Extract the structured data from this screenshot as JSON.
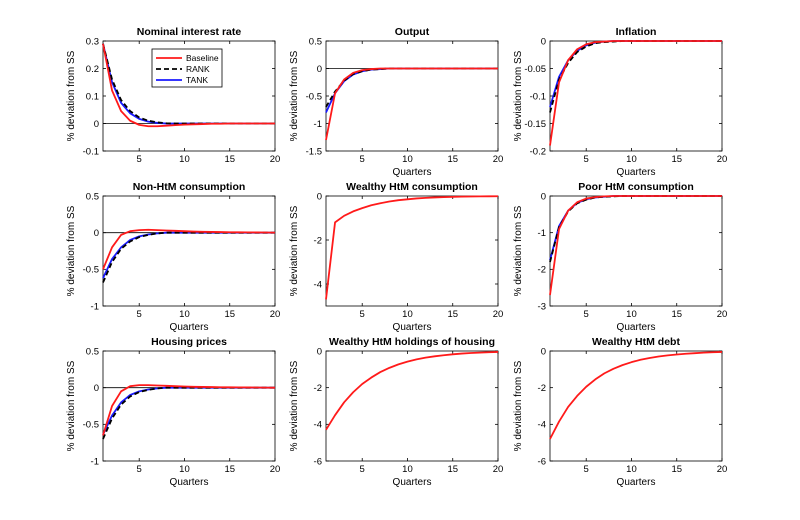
{
  "figure": {
    "colors": {
      "baseline": "#ff1a1a",
      "rank": "#000000",
      "tank": "#1a1aff",
      "zero_line": "#000000"
    },
    "legend": [
      "Baseline",
      "RANK",
      "TANK"
    ]
  },
  "chart_data": [
    {
      "type": "line",
      "title": "Nominal interest rate",
      "xlabel": "",
      "ylabel": "% deviation from SS",
      "xlim": [
        1,
        20
      ],
      "ylim": [
        -0.1,
        0.3
      ],
      "xticks": [
        5,
        10,
        15,
        20
      ],
      "xtick_labels": [
        "5",
        "10",
        "15",
        "20"
      ],
      "yticks": [
        -0.1,
        0,
        0.1,
        0.2,
        0.3
      ],
      "ytick_labels": [
        "-0.1",
        "0",
        "0.1",
        "0.2",
        "0.3"
      ],
      "legend": "top-center",
      "series": [
        {
          "name": "Baseline",
          "style": "solid",
          "color": "#ff1a1a",
          "values": [
            0.29,
            0.12,
            0.045,
            0.01,
            -0.005,
            -0.01,
            -0.01,
            -0.008,
            -0.006,
            -0.004,
            -0.003,
            -0.002,
            -0.001,
            -0.001,
            0,
            0,
            0,
            0,
            0,
            0
          ]
        },
        {
          "name": "RANK",
          "style": "dashed",
          "color": "#000000",
          "values": [
            0.29,
            0.16,
            0.085,
            0.045,
            0.022,
            0.01,
            0.004,
            0.001,
            0,
            0,
            0,
            0,
            0,
            0,
            0,
            0,
            0,
            0,
            0,
            0
          ]
        },
        {
          "name": "TANK",
          "style": "solid",
          "color": "#1a1aff",
          "values": [
            0.29,
            0.15,
            0.075,
            0.037,
            0.017,
            0.007,
            0.002,
            0,
            0,
            0,
            0,
            0,
            0,
            0,
            0,
            0,
            0,
            0,
            0,
            0
          ]
        }
      ]
    },
    {
      "type": "line",
      "title": "Output",
      "xlabel": "Quarters",
      "ylabel": "% deviation from SS",
      "xlim": [
        1,
        20
      ],
      "ylim": [
        -1.5,
        0.5
      ],
      "xticks": [
        5,
        10,
        15,
        20
      ],
      "xtick_labels": [
        "5",
        "10",
        "15",
        "20"
      ],
      "yticks": [
        -1.5,
        -1,
        -0.5,
        0,
        0.5
      ],
      "ytick_labels": [
        "-1.5",
        "-1",
        "-0.5",
        "0",
        "0.5"
      ],
      "series": [
        {
          "name": "Baseline",
          "style": "solid",
          "color": "#ff1a1a",
          "values": [
            -1.3,
            -0.45,
            -0.2,
            -0.08,
            -0.03,
            -0.01,
            0,
            0,
            0,
            0,
            0,
            0,
            0,
            0,
            0,
            0,
            0,
            0,
            0,
            0
          ]
        },
        {
          "name": "RANK",
          "style": "dashed",
          "color": "#000000",
          "values": [
            -0.7,
            -0.42,
            -0.22,
            -0.1,
            -0.05,
            -0.02,
            -0.01,
            0,
            0,
            0,
            0,
            0,
            0,
            0,
            0,
            0,
            0,
            0,
            0,
            0
          ]
        },
        {
          "name": "TANK",
          "style": "solid",
          "color": "#1a1aff",
          "values": [
            -0.8,
            -0.45,
            -0.23,
            -0.11,
            -0.05,
            -0.02,
            -0.01,
            0,
            0,
            0,
            0,
            0,
            0,
            0,
            0,
            0,
            0,
            0,
            0,
            0
          ]
        }
      ]
    },
    {
      "type": "line",
      "title": "Inflation",
      "xlabel": "Quarters",
      "ylabel": "% deviation from SS",
      "xlim": [
        1,
        20
      ],
      "ylim": [
        -0.2,
        0
      ],
      "xticks": [
        5,
        10,
        15,
        20
      ],
      "xtick_labels": [
        "5",
        "10",
        "15",
        "20"
      ],
      "yticks": [
        -0.2,
        -0.15,
        -0.1,
        -0.05,
        0
      ],
      "ytick_labels": [
        "-0.2",
        "-0.15",
        "-0.1",
        "-0.05",
        "0"
      ],
      "series": [
        {
          "name": "Baseline",
          "style": "solid",
          "color": "#ff1a1a",
          "values": [
            -0.19,
            -0.075,
            -0.035,
            -0.015,
            -0.006,
            -0.002,
            -0.001,
            0,
            0,
            0,
            0,
            0,
            0,
            0,
            0,
            0,
            0,
            0,
            0,
            0
          ]
        },
        {
          "name": "RANK",
          "style": "dashed",
          "color": "#000000",
          "values": [
            -0.13,
            -0.07,
            -0.04,
            -0.02,
            -0.01,
            -0.004,
            -0.002,
            -0.001,
            0,
            0,
            0,
            0,
            0,
            0,
            0,
            0,
            0,
            0,
            0,
            0
          ]
        },
        {
          "name": "TANK",
          "style": "solid",
          "color": "#1a1aff",
          "values": [
            -0.12,
            -0.065,
            -0.035,
            -0.018,
            -0.008,
            -0.003,
            -0.001,
            0,
            0,
            0,
            0,
            0,
            0,
            0,
            0,
            0,
            0,
            0,
            0,
            0
          ]
        }
      ]
    },
    {
      "type": "line",
      "title": "Non-HtM consumption",
      "xlabel": "Quarters",
      "ylabel": "% deviation from SS",
      "xlim": [
        1,
        20
      ],
      "ylim": [
        -1,
        0.5
      ],
      "xticks": [
        5,
        10,
        15,
        20
      ],
      "xtick_labels": [
        "5",
        "10",
        "15",
        "20"
      ],
      "yticks": [
        -1,
        -0.5,
        0,
        0.5
      ],
      "ytick_labels": [
        "-1",
        "-0.5",
        "0",
        "0.5"
      ],
      "series": [
        {
          "name": "Baseline",
          "style": "solid",
          "color": "#ff1a1a",
          "values": [
            -0.5,
            -0.2,
            -0.03,
            0.02,
            0.035,
            0.04,
            0.035,
            0.03,
            0.025,
            0.02,
            0.015,
            0.012,
            0.01,
            0.008,
            0.006,
            0.005,
            0.004,
            0.003,
            0.002,
            0.001
          ]
        },
        {
          "name": "RANK",
          "style": "dashed",
          "color": "#000000",
          "values": [
            -0.68,
            -0.4,
            -0.22,
            -0.12,
            -0.06,
            -0.03,
            -0.01,
            0,
            0,
            0,
            0,
            0,
            0,
            0,
            0,
            0,
            0,
            0,
            0,
            0
          ]
        },
        {
          "name": "TANK",
          "style": "solid",
          "color": "#1a1aff",
          "values": [
            -0.62,
            -0.36,
            -0.2,
            -0.1,
            -0.05,
            -0.025,
            -0.01,
            0,
            0,
            0,
            0,
            0,
            0,
            0,
            0,
            0,
            0,
            0,
            0,
            0
          ]
        }
      ]
    },
    {
      "type": "line",
      "title": "Wealthy HtM consumption",
      "xlabel": "Quarters",
      "ylabel": "% deviation from SS",
      "xlim": [
        1,
        20
      ],
      "ylim": [
        -5,
        0
      ],
      "xticks": [
        5,
        10,
        15,
        20
      ],
      "xtick_labels": [
        "5",
        "10",
        "15",
        "20"
      ],
      "yticks": [
        -4,
        -2,
        0
      ],
      "ytick_labels": [
        "-4",
        "-2",
        "0"
      ],
      "series": [
        {
          "name": "Baseline",
          "style": "solid",
          "color": "#ff1a1a",
          "values": [
            -4.7,
            -1.2,
            -0.9,
            -0.7,
            -0.55,
            -0.42,
            -0.33,
            -0.25,
            -0.19,
            -0.15,
            -0.11,
            -0.085,
            -0.065,
            -0.05,
            -0.04,
            -0.03,
            -0.023,
            -0.018,
            -0.014,
            -0.01
          ]
        }
      ]
    },
    {
      "type": "line",
      "title": "Poor HtM consumption",
      "xlabel": "Quarters",
      "ylabel": "% deviation from SS",
      "xlim": [
        1,
        20
      ],
      "ylim": [
        -3,
        0
      ],
      "xticks": [
        5,
        10,
        15,
        20
      ],
      "xtick_labels": [
        "5",
        "10",
        "15",
        "20"
      ],
      "yticks": [
        -3,
        -2,
        -1,
        0
      ],
      "ytick_labels": [
        "-3",
        "-2",
        "-1",
        "0"
      ],
      "series": [
        {
          "name": "Baseline",
          "style": "solid",
          "color": "#ff1a1a",
          "values": [
            -2.7,
            -0.9,
            -0.4,
            -0.17,
            -0.07,
            -0.03,
            -0.01,
            0,
            0,
            0,
            0,
            0,
            0,
            0,
            0,
            0,
            0,
            0,
            0,
            0
          ]
        },
        {
          "name": "RANK",
          "style": "dashed",
          "color": "#000000",
          "values": [
            -1.8,
            -0.85,
            -0.42,
            -0.2,
            -0.1,
            -0.04,
            -0.02,
            -0.01,
            0,
            0,
            0,
            0,
            0,
            0,
            0,
            0,
            0,
            0,
            0,
            0
          ]
        },
        {
          "name": "TANK",
          "style": "solid",
          "color": "#1a1aff",
          "values": [
            -1.75,
            -0.82,
            -0.4,
            -0.19,
            -0.09,
            -0.04,
            -0.02,
            0,
            0,
            0,
            0,
            0,
            0,
            0,
            0,
            0,
            0,
            0,
            0,
            0
          ]
        }
      ]
    },
    {
      "type": "line",
      "title": "Housing prices",
      "xlabel": "Quarters",
      "ylabel": "% deviation from SS",
      "xlim": [
        1,
        20
      ],
      "ylim": [
        -1,
        0.5
      ],
      "xticks": [
        5,
        10,
        15,
        20
      ],
      "xtick_labels": [
        "5",
        "10",
        "15",
        "20"
      ],
      "yticks": [
        -1,
        -0.5,
        0,
        0.5
      ],
      "ytick_labels": [
        "-1",
        "-0.5",
        "0",
        "0.5"
      ],
      "series": [
        {
          "name": "Baseline",
          "style": "solid",
          "color": "#ff1a1a",
          "values": [
            -0.65,
            -0.25,
            -0.05,
            0.02,
            0.035,
            0.035,
            0.03,
            0.025,
            0.02,
            0.016,
            0.012,
            0.01,
            0.008,
            0.006,
            0.005,
            0.004,
            0.003,
            0.002,
            0.001,
            0
          ]
        },
        {
          "name": "RANK",
          "style": "dashed",
          "color": "#000000",
          "values": [
            -0.7,
            -0.42,
            -0.23,
            -0.12,
            -0.06,
            -0.03,
            -0.01,
            0,
            0,
            0,
            0,
            0,
            0,
            0,
            0,
            0,
            0,
            0,
            0,
            0
          ]
        },
        {
          "name": "TANK",
          "style": "solid",
          "color": "#1a1aff",
          "values": [
            -0.64,
            -0.38,
            -0.2,
            -0.1,
            -0.05,
            -0.025,
            -0.01,
            0,
            0,
            0,
            0,
            0,
            0,
            0,
            0,
            0,
            0,
            0,
            0,
            0
          ]
        }
      ]
    },
    {
      "type": "line",
      "title": "Wealthy HtM holdings of housing",
      "xlabel": "Quarters",
      "ylabel": "% deviation from SS",
      "xlim": [
        1,
        20
      ],
      "ylim": [
        -6,
        0
      ],
      "xticks": [
        5,
        10,
        15,
        20
      ],
      "xtick_labels": [
        "5",
        "10",
        "15",
        "20"
      ],
      "yticks": [
        -6,
        -4,
        -2,
        0
      ],
      "ytick_labels": [
        "-6",
        "-4",
        "-2",
        "0"
      ],
      "series": [
        {
          "name": "Baseline",
          "style": "solid",
          "color": "#ff1a1a",
          "values": [
            -4.3,
            -3.5,
            -2.8,
            -2.25,
            -1.8,
            -1.45,
            -1.15,
            -0.92,
            -0.73,
            -0.58,
            -0.46,
            -0.36,
            -0.29,
            -0.23,
            -0.18,
            -0.14,
            -0.11,
            -0.09,
            -0.07,
            -0.05
          ]
        }
      ]
    },
    {
      "type": "line",
      "title": "Wealthy HtM debt",
      "xlabel": "Quarters",
      "ylabel": "% deviation from SS",
      "xlim": [
        1,
        20
      ],
      "ylim": [
        -6,
        0
      ],
      "xticks": [
        5,
        10,
        15,
        20
      ],
      "xtick_labels": [
        "5",
        "10",
        "15",
        "20"
      ],
      "yticks": [
        -6,
        -4,
        -2,
        0
      ],
      "ytick_labels": [
        "-6",
        "-4",
        "-2",
        "0"
      ],
      "series": [
        {
          "name": "Baseline",
          "style": "solid",
          "color": "#ff1a1a",
          "values": [
            -4.8,
            -3.85,
            -3.05,
            -2.45,
            -1.95,
            -1.55,
            -1.22,
            -0.97,
            -0.77,
            -0.61,
            -0.48,
            -0.38,
            -0.3,
            -0.24,
            -0.19,
            -0.15,
            -0.12,
            -0.09,
            -0.07,
            -0.05
          ]
        }
      ]
    }
  ]
}
